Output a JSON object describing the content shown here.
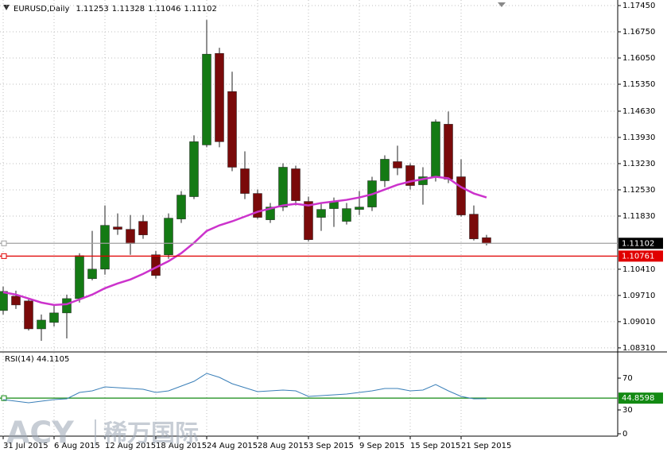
{
  "chart_data": [
    {
      "type": "candlestick",
      "title": "EURUSD,Daily",
      "categories": [
        "31 Jul 2015",
        null,
        null,
        null,
        "6 Aug 2015",
        null,
        null,
        null,
        "12 Aug 2015",
        null,
        null,
        null,
        "18 Aug 2015",
        null,
        null,
        null,
        "24 Aug 2015",
        null,
        null,
        null,
        "28 Aug 2015",
        null,
        null,
        null,
        "3 Sep 2015",
        null,
        null,
        null,
        "9 Sep 2015",
        null,
        null,
        null,
        "15 Sep 2015",
        null,
        null,
        null,
        "21 Sep 2015",
        null,
        null
      ],
      "open": [
        1.09307,
        1.0969,
        1.09563,
        1.08818,
        1.08989,
        1.09244,
        1.09626,
        1.10158,
        1.10413,
        1.1154,
        1.11476,
        1.11689,
        1.10796,
        1.10796,
        1.11752,
        1.12348,
        1.13729,
        1.16174,
        1.15154,
        1.13092,
        1.12433,
        1.11731,
        1.12071,
        1.13092,
        1.1222,
        1.11795,
        1.12029,
        1.11689,
        1.12007,
        1.12071,
        1.12773,
        1.13283,
        1.13177,
        1.12666,
        1.12879,
        1.14282,
        1.12879,
        1.1188,
        1.11253
      ],
      "high": [
        1.09946,
        1.09839,
        1.09626,
        1.09201,
        1.09456,
        1.09733,
        1.10838,
        1.11433,
        1.12114,
        1.11901,
        1.11859,
        1.11859,
        1.10902,
        1.11901,
        1.12496,
        1.13985,
        1.17067,
        1.16323,
        1.15685,
        1.13559,
        1.12539,
        1.12178,
        1.13241,
        1.13177,
        1.12348,
        1.12178,
        1.12326,
        1.12178,
        1.12496,
        1.12879,
        1.13453,
        1.13708,
        1.13241,
        1.13134,
        1.1441,
        1.14622,
        1.13347,
        1.12114,
        1.11328
      ],
      "low": [
        1.09201,
        1.0935,
        1.08776,
        1.085,
        1.08882,
        1.08563,
        1.0952,
        1.10115,
        1.10264,
        1.11327,
        1.10796,
        1.11221,
        1.10158,
        1.10689,
        1.11646,
        1.12284,
        1.13666,
        1.13666,
        1.13028,
        1.12284,
        1.11752,
        1.11646,
        1.11965,
        1.12114,
        1.11157,
        1.11433,
        1.1154,
        1.11603,
        1.11859,
        1.11965,
        1.12603,
        1.12922,
        1.12539,
        1.12135,
        1.12752,
        1.12709,
        1.11816,
        1.11178,
        1.11046
      ],
      "close": [
        1.09818,
        1.09456,
        1.08818,
        1.09052,
        1.09244,
        1.09626,
        1.10774,
        1.10413,
        1.11582,
        1.11476,
        1.11093,
        1.11327,
        1.10243,
        1.11774,
        1.1239,
        1.13815,
        1.16153,
        1.13815,
        1.13134,
        1.12433,
        1.11795,
        1.12071,
        1.13134,
        1.12241,
        1.112,
        1.12007,
        1.1222,
        1.12029,
        1.12071,
        1.12773,
        1.13347,
        1.13113,
        1.12645,
        1.12879,
        1.14346,
        1.12815,
        1.11859,
        1.11221,
        1.11102
      ],
      "up_color": "#147a14",
      "down_color": "#7a0a0a",
      "moving_average": {
        "color": "#cc33cc",
        "values": [
          1.09796,
          1.09733,
          1.09626,
          1.0952,
          1.09456,
          1.09477,
          1.09605,
          1.09733,
          1.09903,
          1.1003,
          1.10137,
          1.10285,
          1.10456,
          1.10626,
          1.10838,
          1.11115,
          1.11433,
          1.11582,
          1.11689,
          1.11816,
          1.11944,
          1.12029,
          1.12114,
          1.12156,
          1.12114,
          1.12178,
          1.1222,
          1.12263,
          1.12326,
          1.12411,
          1.12539,
          1.12666,
          1.12752,
          1.12815,
          1.12879,
          1.12837,
          1.12603,
          1.12433,
          1.12326
        ]
      },
      "levels": [
        {
          "value": 1.11102,
          "color": "#a0a0a0",
          "box_color": "#000000"
        },
        {
          "value": 1.10761,
          "color": "#e00000",
          "box_color": "#e00000"
        }
      ],
      "ylim": [
        1.08202,
        1.17599
      ],
      "yticks": [
        {
          "value": 1.1745,
          "label": "1.17450"
        },
        {
          "value": 1.1675,
          "label": "1.16750"
        },
        {
          "value": 1.1605,
          "label": "1.16050"
        },
        {
          "value": 1.1535,
          "label": "1.15350"
        },
        {
          "value": 1.1463,
          "label": "1.14630"
        },
        {
          "value": 1.1393,
          "label": "1.13930"
        },
        {
          "value": 1.1323,
          "label": "1.13230"
        },
        {
          "value": 1.1253,
          "label": "1.12530"
        },
        {
          "value": 1.1183,
          "label": "1.11830"
        },
        {
          "value": 1.1041,
          "label": "1.10410"
        },
        {
          "value": 1.0971,
          "label": "1.09710"
        },
        {
          "value": 1.0901,
          "label": "1.09010"
        },
        {
          "value": 1.0831,
          "label": "1.08310"
        }
      ],
      "grid": true
    },
    {
      "type": "line",
      "title": "RSI(14) 44.1105",
      "color": "#3a7fb8",
      "values": [
        43,
        41,
        39,
        41,
        43,
        44,
        52,
        54,
        59,
        58,
        57,
        56,
        52,
        54,
        60,
        66,
        76,
        71,
        63,
        58,
        53,
        54,
        55,
        54,
        47,
        48,
        49,
        50,
        52,
        54,
        57,
        57,
        54,
        55,
        62,
        54,
        47,
        44,
        44.1
      ],
      "levels": [
        {
          "value": 44.8598,
          "color": "#138a13",
          "box_color": "#138a13"
        }
      ],
      "ylim": [
        0,
        100
      ],
      "yticks": [
        70,
        30,
        0
      ],
      "grid": false
    }
  ],
  "watermark": {
    "brand": "ACY",
    "name": "稀万国际"
  }
}
